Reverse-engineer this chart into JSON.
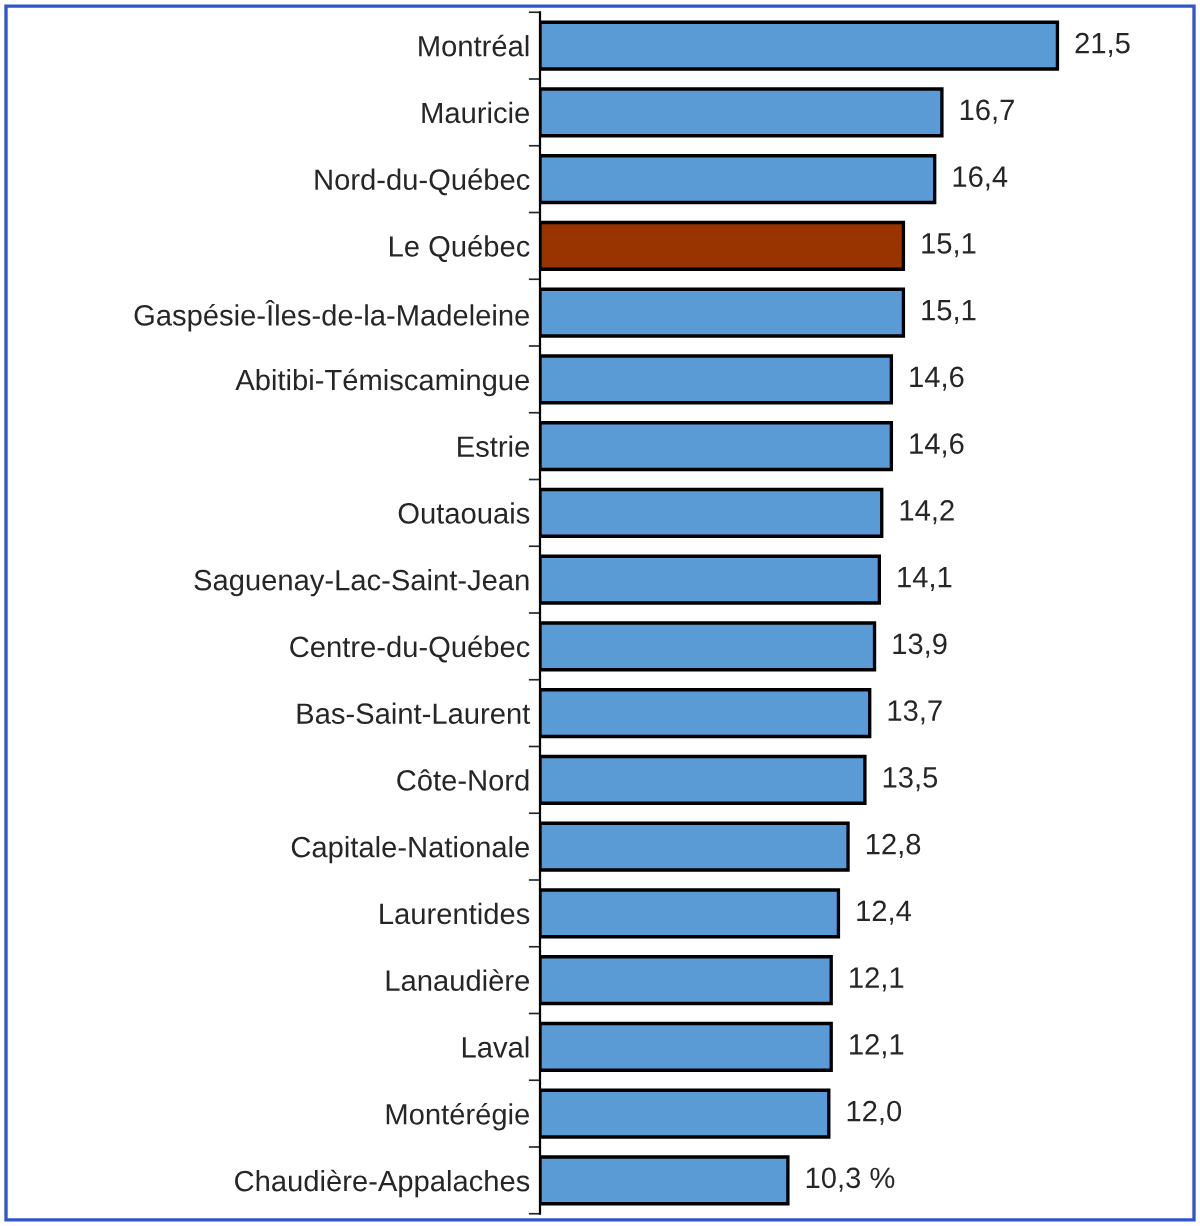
{
  "chart_data": {
    "type": "bar",
    "orientation": "horizontal",
    "categories": [
      "Montréal",
      "Mauricie",
      "Nord-du-Québec",
      "Le Québec",
      "Gaspésie-Îles-de-la-Madeleine",
      "Abitibi-Témiscamingue",
      "Estrie",
      "Outaouais",
      "Saguenay-Lac-Saint-Jean",
      "Centre-du-Québec",
      "Bas-Saint-Laurent",
      "Côte-Nord",
      "Capitale-Nationale",
      "Laurentides",
      "Lanaudière",
      "Laval",
      "Montérégie",
      "Chaudière-Appalaches"
    ],
    "values": [
      21.5,
      16.7,
      16.4,
      15.1,
      15.1,
      14.6,
      14.6,
      14.2,
      14.1,
      13.9,
      13.7,
      13.5,
      12.8,
      12.4,
      12.1,
      12.1,
      12.0,
      10.3
    ],
    "colors": [
      "#5b9bd5",
      "#5b9bd5",
      "#5b9bd5",
      "#993300",
      "#5b9bd5",
      "#5b9bd5",
      "#5b9bd5",
      "#5b9bd5",
      "#5b9bd5",
      "#5b9bd5",
      "#5b9bd5",
      "#5b9bd5",
      "#5b9bd5",
      "#5b9bd5",
      "#5b9bd5",
      "#5b9bd5",
      "#5b9bd5",
      "#5b9bd5"
    ],
    "value_labels": [
      "21,5",
      "16,7",
      "16,4",
      "15,1",
      "15,1",
      "14,6",
      "14,6",
      "14,2",
      "14,1",
      "13,9",
      "13,7",
      "13,5",
      "12,8",
      "12,4",
      "12,1",
      "12,1",
      "12,0",
      "10,3 %"
    ],
    "tick_labels": "y",
    "grid": false,
    "legend": false
  }
}
